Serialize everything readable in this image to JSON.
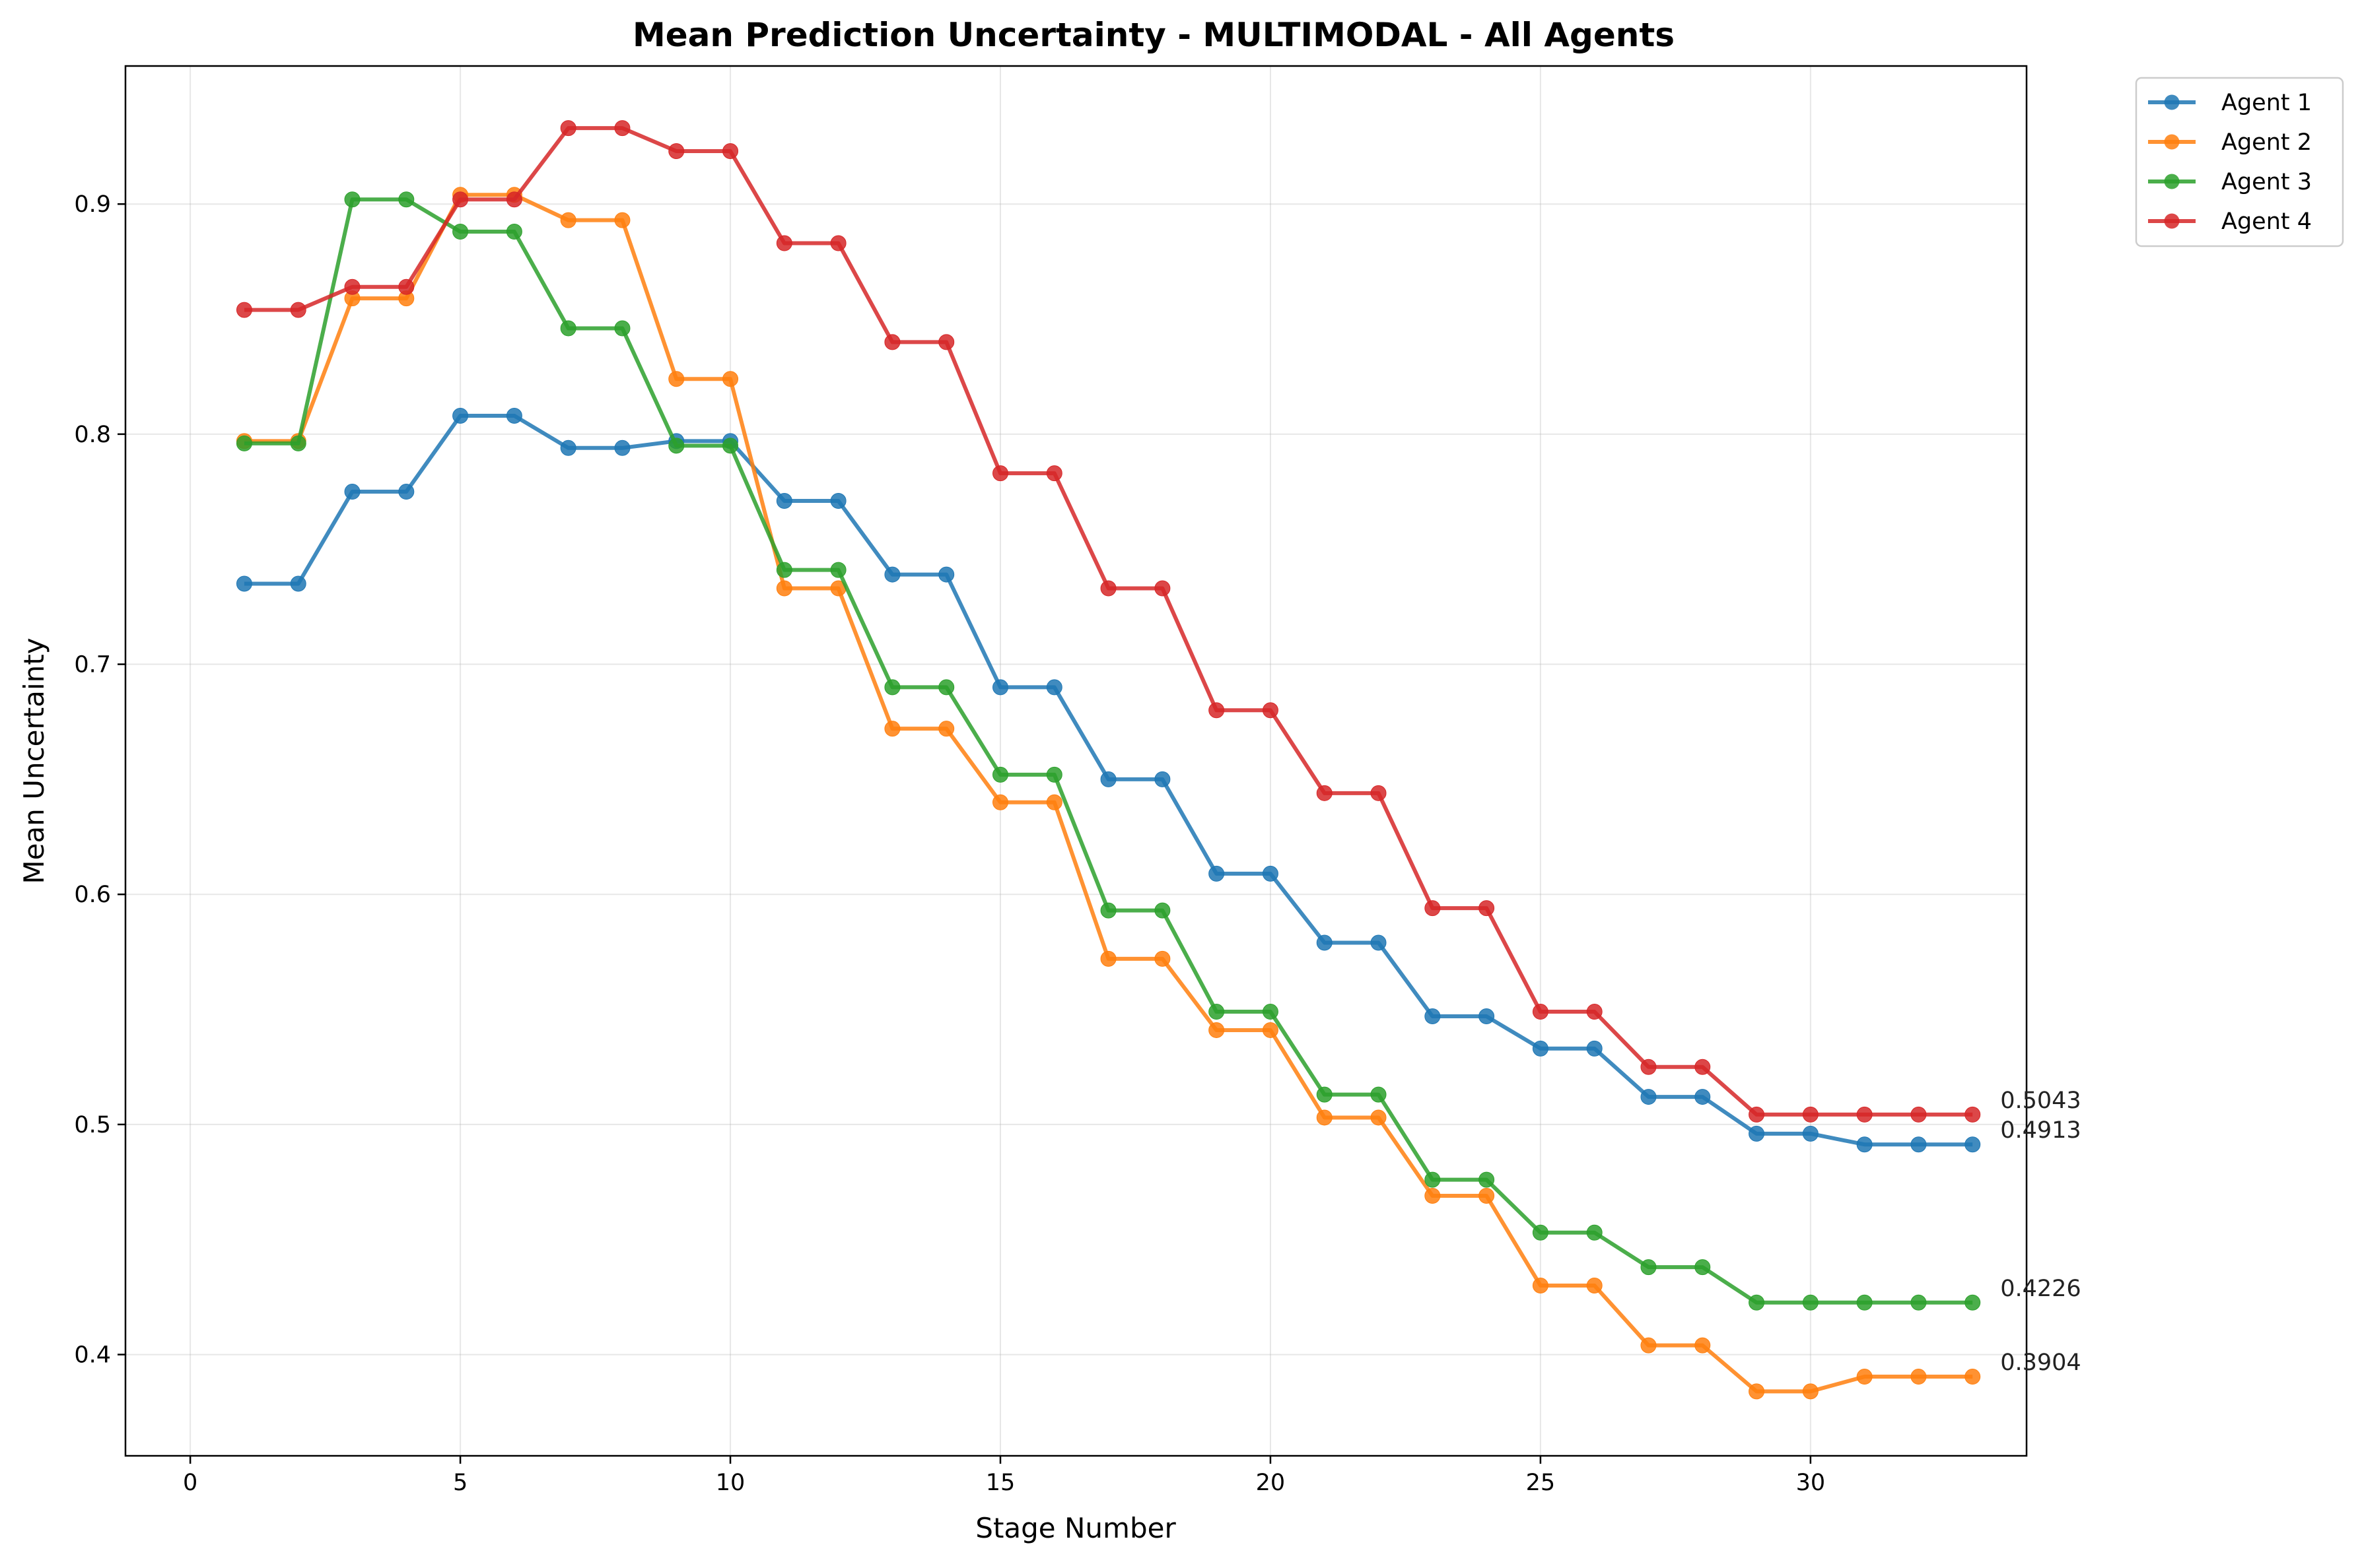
{
  "chart_data": {
    "type": "line",
    "title": "Mean Prediction Uncertainty - MULTIMODAL - All Agents",
    "xlabel": "Stage Number",
    "ylabel": "Mean Uncertainty",
    "xlim": [
      -1.2,
      34.0
    ],
    "ylim": [
      0.356,
      0.96
    ],
    "xticks": [
      0,
      5,
      10,
      15,
      20,
      25,
      30
    ],
    "yticks": [
      0.4,
      0.5,
      0.6,
      0.7,
      0.8,
      0.9
    ],
    "grid": true,
    "legend_position": "outside-top-right",
    "x": [
      1,
      2,
      3,
      4,
      5,
      6,
      7,
      8,
      9,
      10,
      11,
      12,
      13,
      14,
      15,
      16,
      17,
      18,
      19,
      20,
      21,
      22,
      23,
      24,
      25,
      26,
      27,
      28,
      29,
      30,
      31,
      32,
      33
    ],
    "series": [
      {
        "name": "Agent 1",
        "color": "#1f77b4",
        "values": [
          0.735,
          0.735,
          0.775,
          0.775,
          0.808,
          0.808,
          0.794,
          0.794,
          0.797,
          0.797,
          0.771,
          0.771,
          0.739,
          0.739,
          0.69,
          0.69,
          0.65,
          0.65,
          0.609,
          0.609,
          0.579,
          0.579,
          0.547,
          0.547,
          0.533,
          0.533,
          0.512,
          0.512,
          0.496,
          0.496,
          0.4913,
          0.4913,
          0.4913
        ],
        "end_label": "0.4913"
      },
      {
        "name": "Agent 2",
        "color": "#ff7f0e",
        "values": [
          0.797,
          0.797,
          0.859,
          0.859,
          0.904,
          0.904,
          0.893,
          0.893,
          0.824,
          0.824,
          0.733,
          0.733,
          0.672,
          0.672,
          0.64,
          0.64,
          0.572,
          0.572,
          0.541,
          0.541,
          0.503,
          0.503,
          0.469,
          0.469,
          0.43,
          0.43,
          0.404,
          0.404,
          0.384,
          0.384,
          0.3904,
          0.3904,
          0.3904
        ],
        "end_label": "0.3904"
      },
      {
        "name": "Agent 3",
        "color": "#2ca02c",
        "values": [
          0.796,
          0.796,
          0.902,
          0.902,
          0.888,
          0.888,
          0.846,
          0.846,
          0.795,
          0.795,
          0.741,
          0.741,
          0.69,
          0.69,
          0.652,
          0.652,
          0.593,
          0.593,
          0.549,
          0.549,
          0.513,
          0.513,
          0.476,
          0.476,
          0.453,
          0.453,
          0.438,
          0.438,
          0.4226,
          0.4226,
          0.4226,
          0.4226,
          0.4226
        ],
        "end_label": "0.4226"
      },
      {
        "name": "Agent 4",
        "color": "#d62728",
        "values": [
          0.854,
          0.854,
          0.864,
          0.864,
          0.902,
          0.902,
          0.933,
          0.933,
          0.923,
          0.923,
          0.883,
          0.883,
          0.84,
          0.84,
          0.783,
          0.783,
          0.733,
          0.733,
          0.68,
          0.68,
          0.644,
          0.644,
          0.594,
          0.594,
          0.549,
          0.549,
          0.525,
          0.525,
          0.5043,
          0.5043,
          0.5043,
          0.5043,
          0.5043
        ],
        "end_label": "0.5043"
      }
    ]
  }
}
